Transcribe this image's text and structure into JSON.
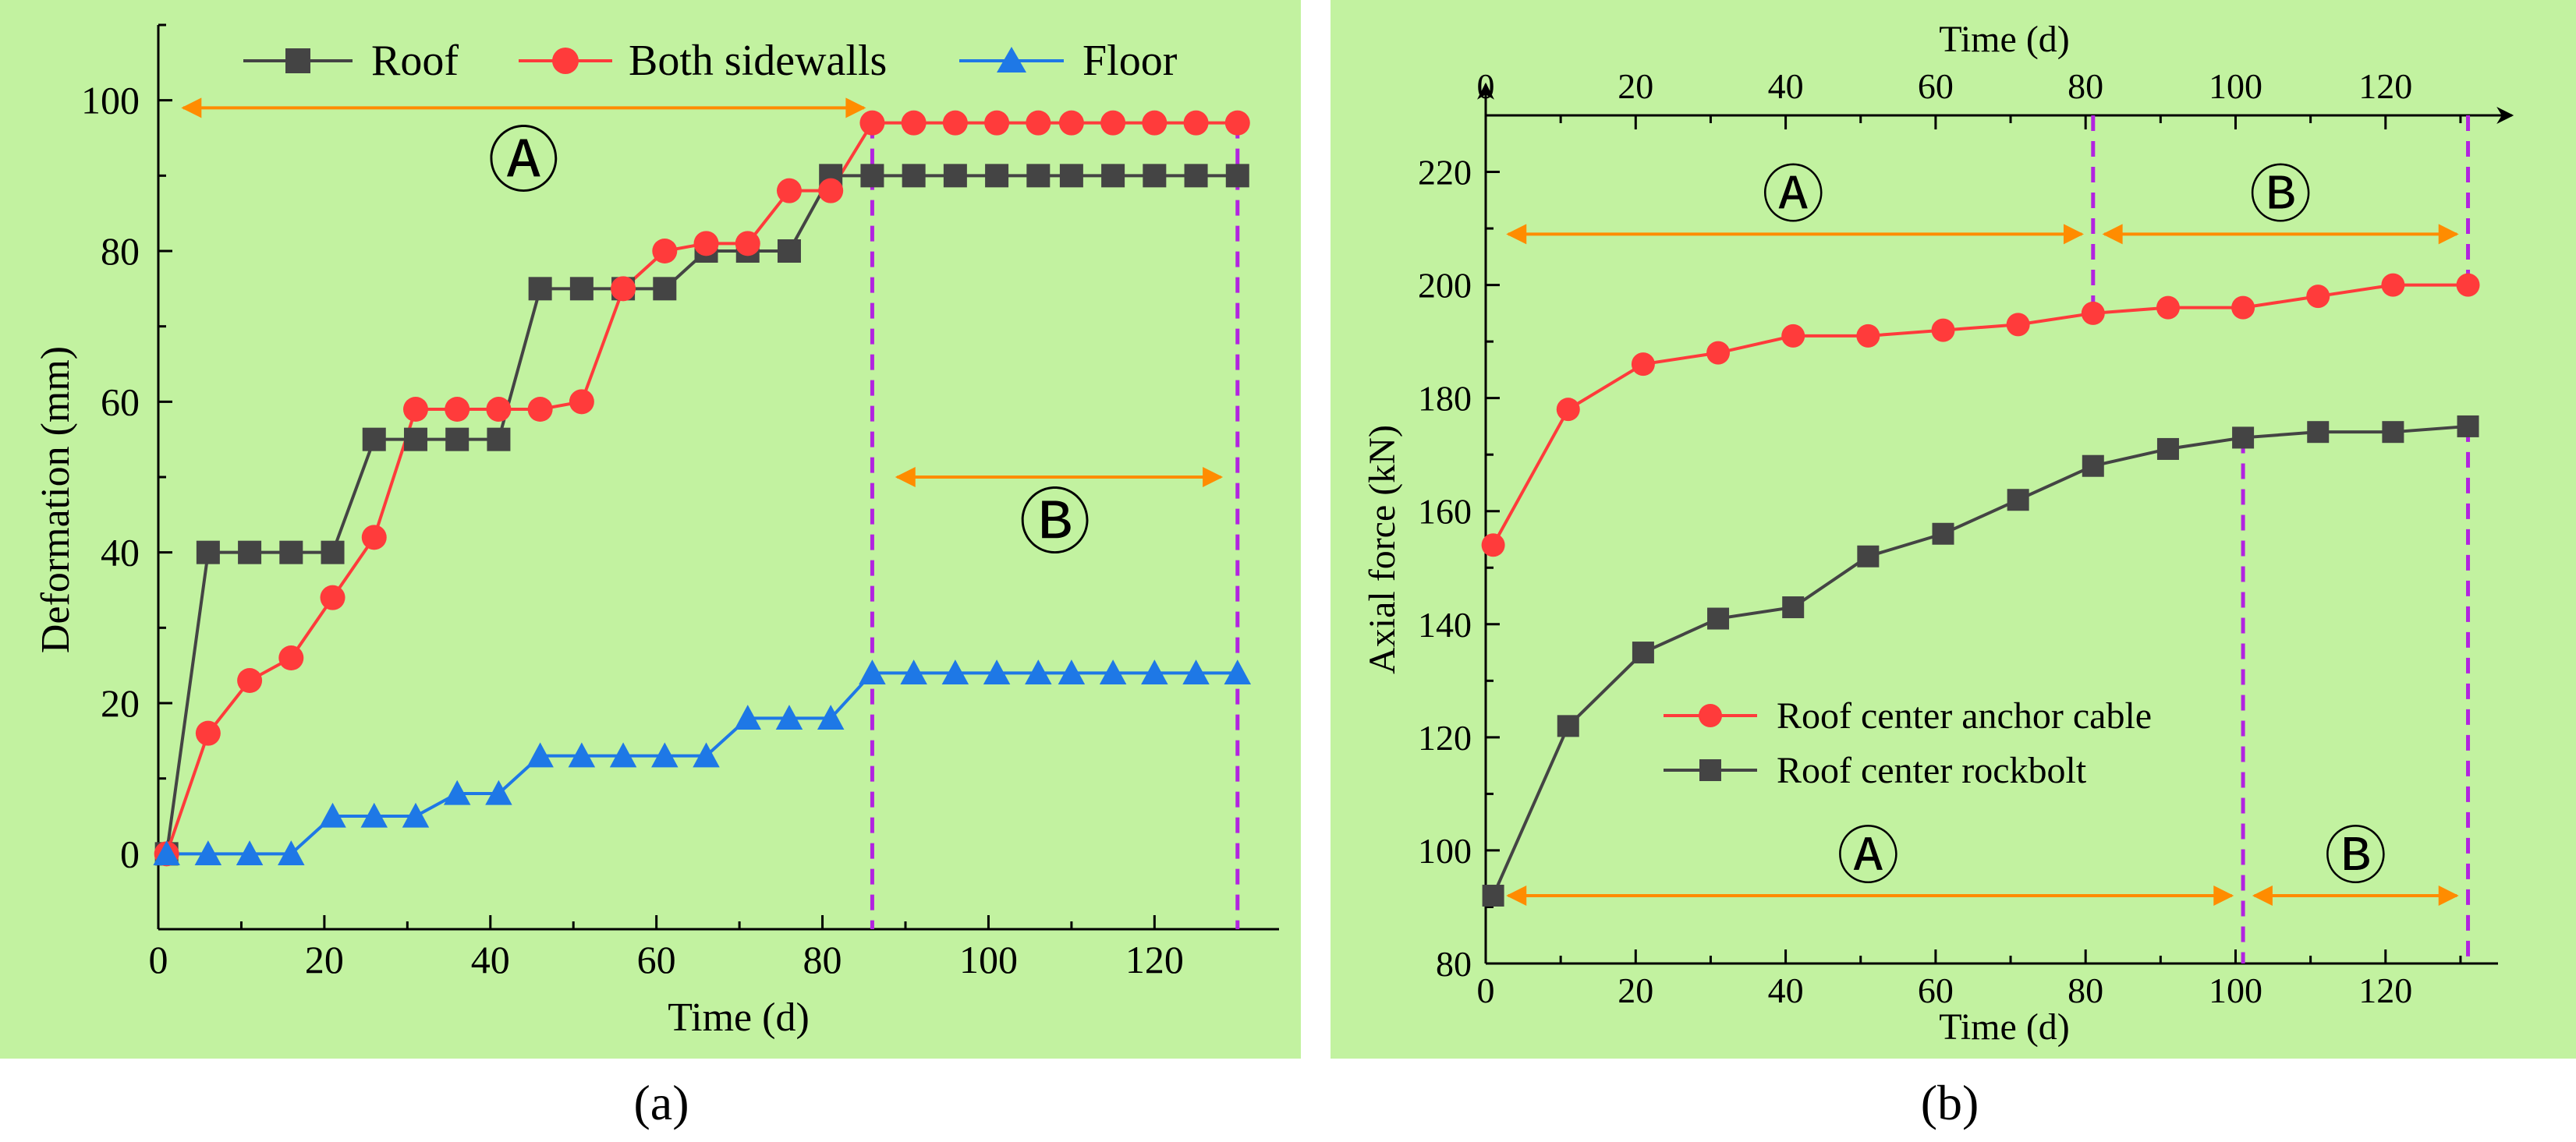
{
  "colors": {
    "panel_bg": "#c2f2a0",
    "roof": "#444444",
    "sidewalls": "#ff3b3b",
    "floor": "#1e78e6",
    "phase_arrow": "#ff8c00",
    "phase_divider": "#b224e0",
    "axis": "#000000"
  },
  "chart_data": [
    {
      "type": "line",
      "panel_label": "(a)",
      "xlabel": "Time (d)",
      "ylabel": "Deformation (mm)",
      "xlim": [
        0,
        135
      ],
      "ylim": [
        -10,
        110
      ],
      "xticks": [
        0,
        20,
        40,
        60,
        80,
        100,
        120
      ],
      "yticks": [
        0,
        20,
        40,
        60,
        80,
        100
      ],
      "legend_position": "top",
      "series": [
        {
          "name": "Roof",
          "marker": "square",
          "color": "#444444",
          "x": [
            1,
            6,
            11,
            16,
            21,
            26,
            31,
            36,
            41,
            46,
            51,
            56,
            61,
            66,
            71,
            76,
            81,
            86,
            91,
            96,
            101,
            106,
            110,
            115,
            120,
            125,
            130
          ],
          "y": [
            0,
            40,
            40,
            40,
            40,
            55,
            55,
            55,
            55,
            75,
            75,
            75,
            75,
            80,
            80,
            80,
            90,
            90,
            90,
            90,
            90,
            90,
            90,
            90,
            90,
            90,
            90
          ]
        },
        {
          "name": "Both sidewalls",
          "marker": "circle",
          "color": "#ff3b3b",
          "x": [
            1,
            6,
            11,
            16,
            21,
            26,
            31,
            36,
            41,
            46,
            51,
            56,
            61,
            66,
            71,
            76,
            81,
            86,
            91,
            96,
            101,
            106,
            110,
            115,
            120,
            125,
            130
          ],
          "y": [
            0,
            16,
            23,
            26,
            34,
            42,
            59,
            59,
            59,
            59,
            60,
            75,
            80,
            81,
            81,
            88,
            88,
            97,
            97,
            97,
            97,
            97,
            97,
            97,
            97,
            97,
            97
          ]
        },
        {
          "name": "Floor",
          "marker": "triangle",
          "color": "#1e78e6",
          "x": [
            1,
            6,
            11,
            16,
            21,
            26,
            31,
            36,
            41,
            46,
            51,
            56,
            61,
            66,
            71,
            76,
            81,
            86,
            91,
            96,
            101,
            106,
            110,
            115,
            120,
            125,
            130
          ],
          "y": [
            0,
            0,
            0,
            0,
            5,
            5,
            5,
            8,
            8,
            13,
            13,
            13,
            13,
            13,
            18,
            18,
            18,
            24,
            24,
            24,
            24,
            24,
            24,
            24,
            24,
            24,
            24
          ]
        }
      ],
      "phase_dividers_x": [
        86,
        130
      ],
      "phases": [
        {
          "label": "Ⓐ",
          "x_start": 3,
          "x_end": 85,
          "y": 99,
          "label_x": 44,
          "label_y": 92
        },
        {
          "label": "Ⓑ",
          "x_start": 89,
          "x_end": 128,
          "y": 50,
          "label_x": 108,
          "label_y": 44
        }
      ]
    },
    {
      "type": "line",
      "panel_label": "(b)",
      "xlabel": "Time (d)",
      "ylabel": "Axial force (kN)",
      "xlim": [
        0,
        135
      ],
      "ylim": [
        80,
        230
      ],
      "xticks": [
        0,
        20,
        40,
        60,
        80,
        100,
        120
      ],
      "yticks": [
        80,
        100,
        120,
        140,
        160,
        180,
        200,
        220
      ],
      "legend_position": "center-left",
      "series": [
        {
          "name": "Roof center anchor cable",
          "marker": "circle",
          "color": "#ff3b3b",
          "x": [
            1,
            11,
            21,
            31,
            41,
            51,
            61,
            71,
            81,
            91,
            101,
            111,
            121,
            131
          ],
          "y": [
            154,
            178,
            186,
            188,
            191,
            191,
            192,
            193,
            195,
            196,
            196,
            198,
            200,
            200
          ]
        },
        {
          "name": "Roof center rockbolt",
          "marker": "square",
          "color": "#444444",
          "x": [
            1,
            11,
            21,
            31,
            41,
            51,
            61,
            71,
            81,
            91,
            101,
            111,
            121,
            131
          ],
          "y": [
            92,
            122,
            135,
            141,
            143,
            152,
            156,
            162,
            168,
            171,
            173,
            174,
            174,
            175
          ]
        }
      ],
      "phase_dividers": [
        {
          "x": 81,
          "y_from": 195,
          "y_to": 230
        },
        {
          "x": 131,
          "y_from": 200,
          "y_to": 230
        },
        {
          "x": 101,
          "y_from": 80,
          "y_to": 173
        },
        {
          "x": 131,
          "y_from": 80,
          "y_to": 175
        }
      ],
      "phases": [
        {
          "label": "Ⓐ",
          "x_start": 3,
          "x_end": 79.5,
          "y": 209,
          "label_x": 41,
          "label_y": 216
        },
        {
          "label": "Ⓑ",
          "x_start": 82.5,
          "x_end": 129.5,
          "y": 209,
          "label_x": 106,
          "label_y": 216
        },
        {
          "label": "Ⓐ",
          "x_start": 3,
          "x_end": 99.5,
          "y": 92,
          "label_x": 51,
          "label_y": 99
        },
        {
          "label": "Ⓑ",
          "x_start": 102.5,
          "x_end": 129.5,
          "y": 92,
          "label_x": 116,
          "label_y": 99
        }
      ]
    }
  ]
}
